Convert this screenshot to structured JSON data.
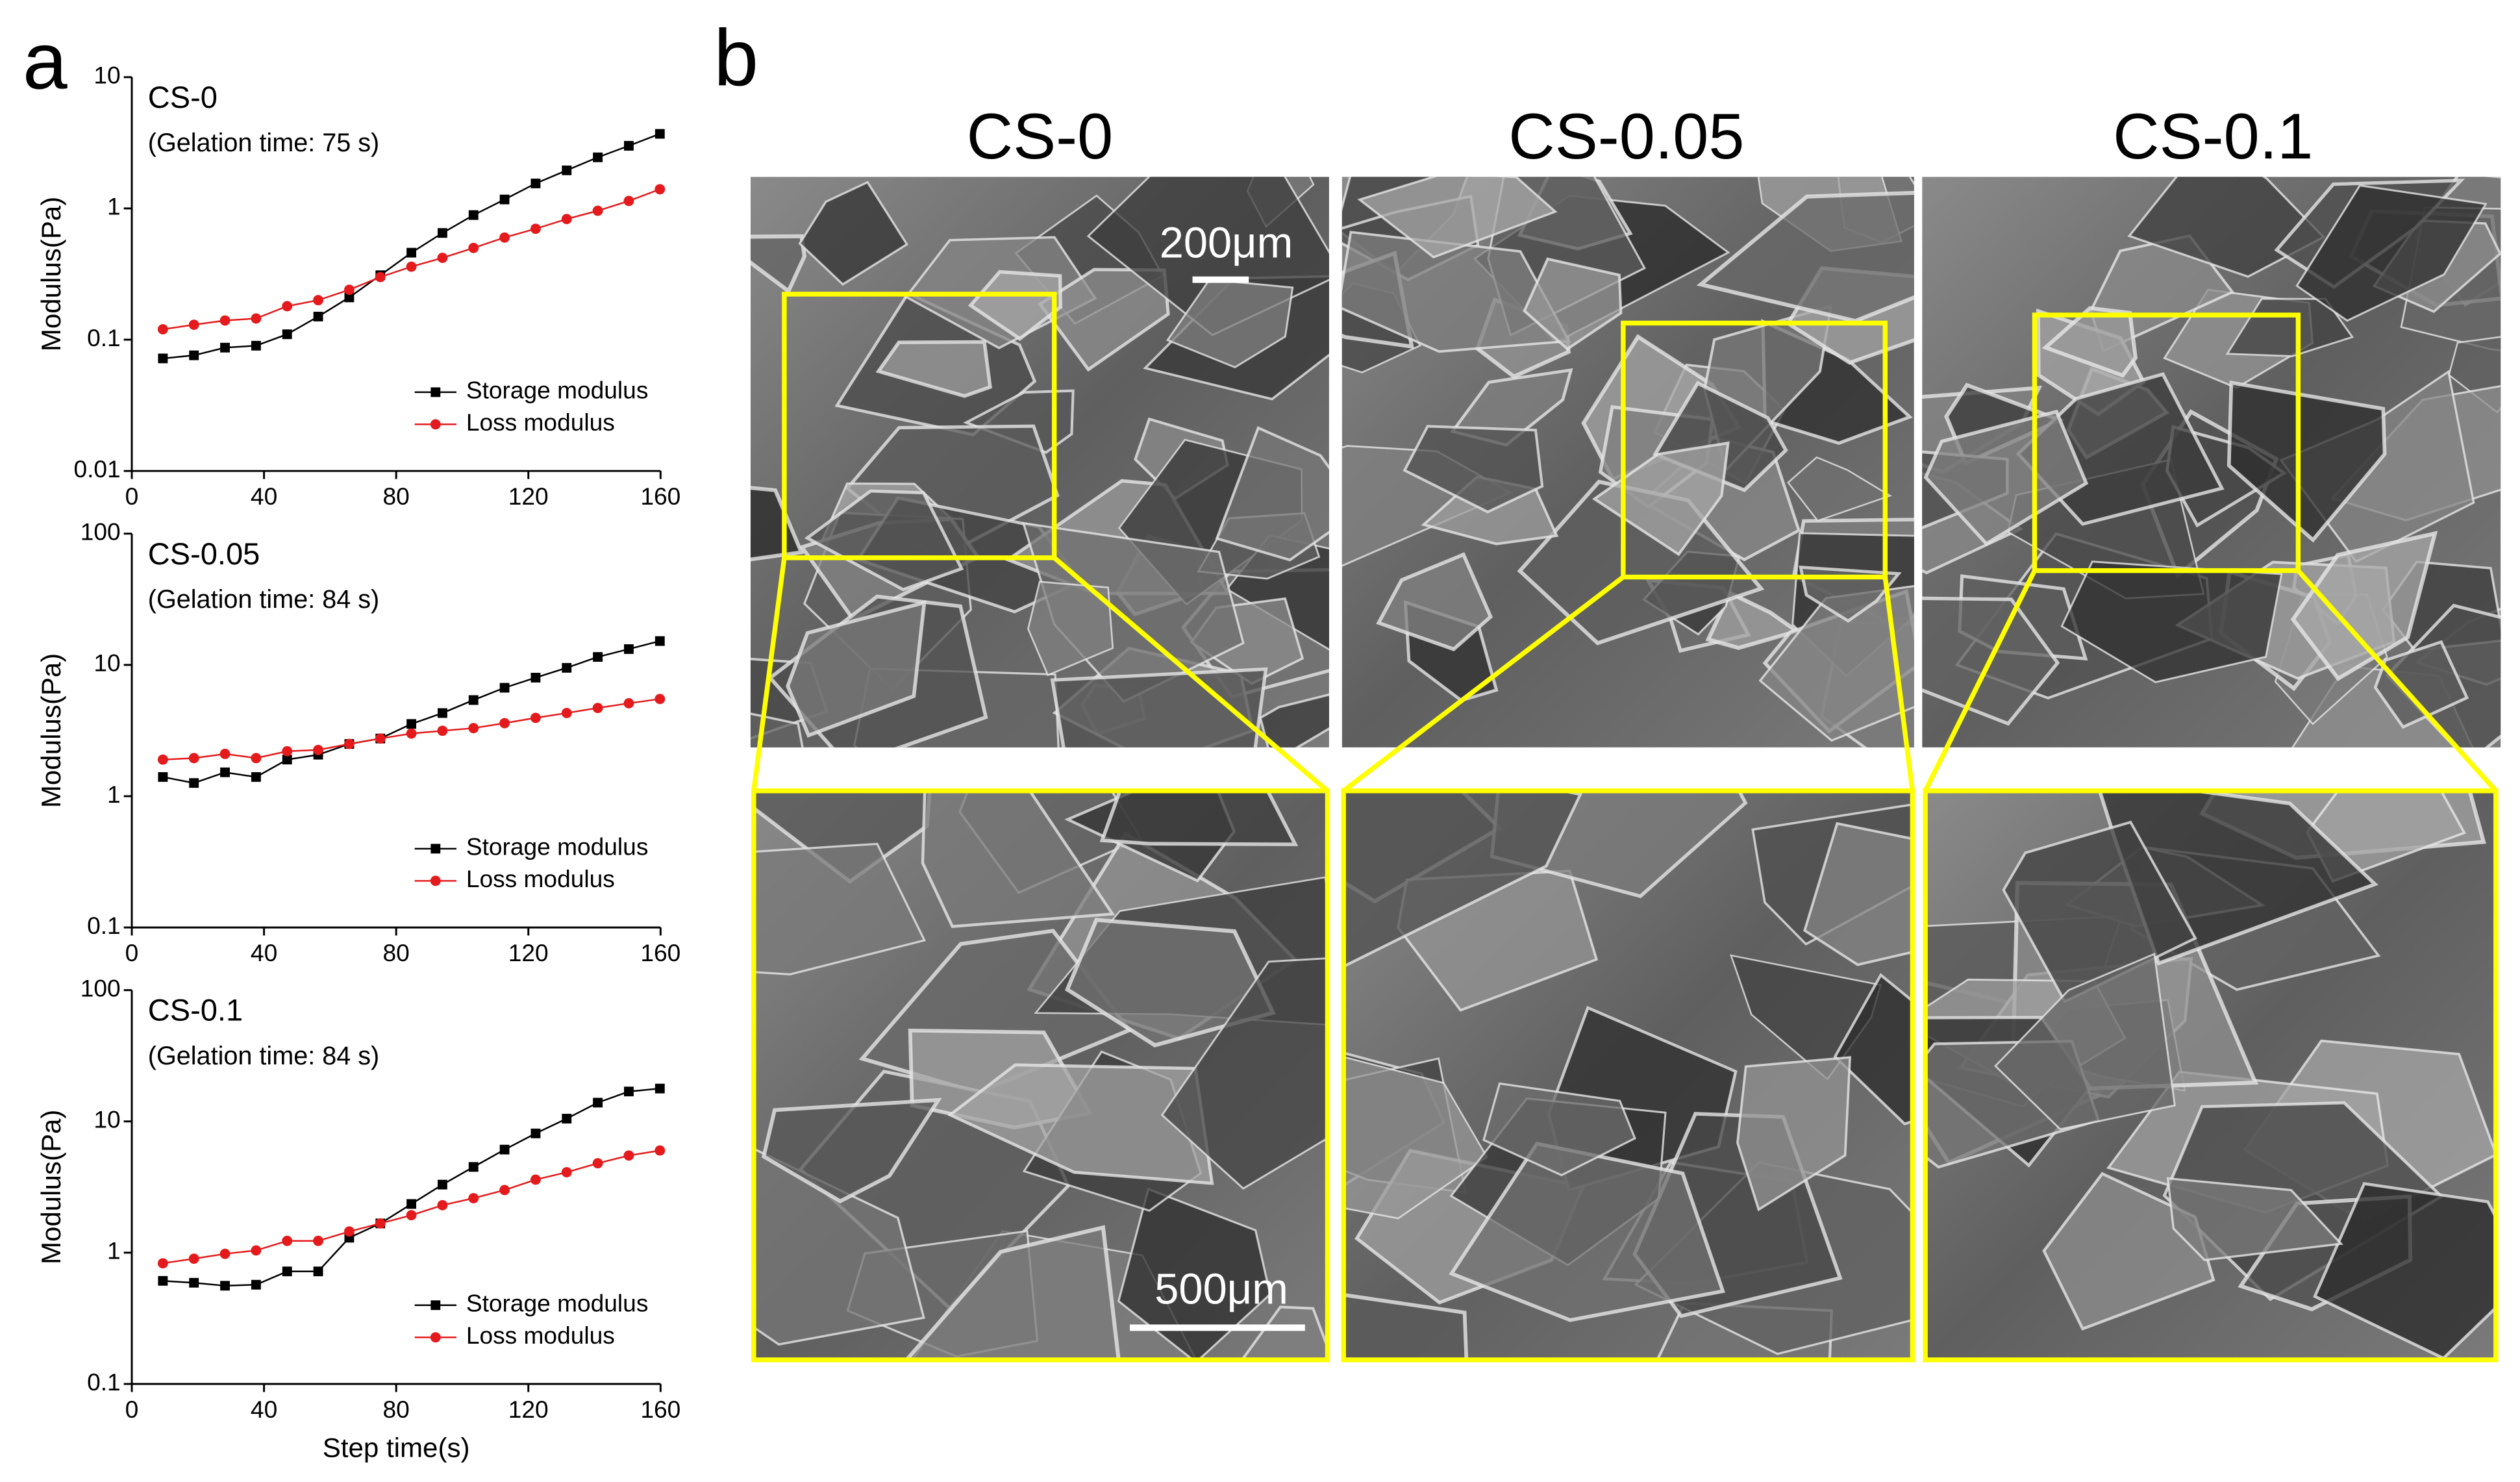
{
  "panels": [
    "a",
    "b"
  ],
  "sem": {
    "titles": [
      "CS-0",
      "CS-0.05",
      "CS-0.1"
    ],
    "scale_bars": [
      "200μm",
      "500μm"
    ]
  },
  "chart_data": [
    {
      "type": "line",
      "title": "CS-0",
      "subtitle": "(Gelation time: 75 s)",
      "y_label": "Modulus(Pa)",
      "x": [
        9.4,
        18.8,
        28.2,
        37.6,
        47,
        56.4,
        65.8,
        75.2,
        84.6,
        94,
        103.4,
        112.8,
        122.2,
        131.6,
        141,
        150.4,
        159.8
      ],
      "series": [
        {
          "name": "Storage modulus",
          "color": "#000000",
          "marker": "square",
          "values": [
            0.072,
            0.076,
            0.087,
            0.09,
            0.11,
            0.15,
            0.21,
            0.31,
            0.46,
            0.65,
            0.89,
            1.17,
            1.55,
            1.95,
            2.45,
            3.0,
            3.7
          ]
        },
        {
          "name": "Loss modulus",
          "color": "#e41a1c",
          "marker": "circle",
          "values": [
            0.12,
            0.13,
            0.14,
            0.145,
            0.18,
            0.2,
            0.24,
            0.3,
            0.36,
            0.42,
            0.5,
            0.6,
            0.7,
            0.83,
            0.96,
            1.14,
            1.4
          ]
        }
      ],
      "xlim": [
        0,
        160
      ],
      "xticks": [
        0,
        40,
        80,
        120,
        160
      ],
      "ylim": [
        0.01,
        10
      ],
      "yticks": [
        0.01,
        0.1,
        1,
        10
      ],
      "log_y": true,
      "legend": "lower right"
    },
    {
      "type": "line",
      "title": "CS-0.05",
      "subtitle": "(Gelation time: 84 s)",
      "y_label": "Modulus(Pa)",
      "x": [
        9.4,
        18.8,
        28.2,
        37.6,
        47,
        56.4,
        65.8,
        75.2,
        84.6,
        94,
        103.4,
        112.8,
        122.2,
        131.6,
        141,
        150.4,
        159.8
      ],
      "series": [
        {
          "name": "Storage modulus",
          "color": "#000000",
          "marker": "square",
          "values": [
            1.4,
            1.26,
            1.52,
            1.4,
            1.9,
            2.07,
            2.5,
            2.75,
            3.55,
            4.3,
            5.4,
            6.7,
            8.0,
            9.5,
            11.5,
            13.2,
            15.2
          ]
        },
        {
          "name": "Loss modulus",
          "color": "#e41a1c",
          "marker": "circle",
          "values": [
            1.9,
            1.95,
            2.1,
            1.95,
            2.2,
            2.25,
            2.5,
            2.75,
            3.0,
            3.15,
            3.3,
            3.6,
            3.95,
            4.3,
            4.7,
            5.1,
            5.5
          ]
        }
      ],
      "xlim": [
        0,
        160
      ],
      "xticks": [
        0,
        40,
        80,
        120,
        160
      ],
      "ylim": [
        0.1,
        100
      ],
      "yticks": [
        0.1,
        1,
        10,
        100
      ],
      "log_y": true,
      "legend": "lower right"
    },
    {
      "type": "line",
      "title": "CS-0.1",
      "subtitle": "(Gelation time: 84 s)",
      "y_label": "Modulus(Pa)",
      "x_label": "Step time(s)",
      "x": [
        9.4,
        18.8,
        28.2,
        37.6,
        47,
        56.4,
        65.8,
        75.2,
        84.6,
        94,
        103.4,
        112.8,
        122.2,
        131.6,
        141,
        150.4,
        159.8
      ],
      "series": [
        {
          "name": "Storage modulus",
          "color": "#000000",
          "marker": "square",
          "values": [
            0.61,
            0.59,
            0.56,
            0.57,
            0.72,
            0.72,
            1.3,
            1.67,
            2.35,
            3.3,
            4.5,
            6.1,
            8.1,
            10.5,
            13.9,
            16.9,
            17.8
          ]
        },
        {
          "name": "Loss modulus",
          "color": "#e41a1c",
          "marker": "circle",
          "values": [
            0.83,
            0.9,
            0.98,
            1.04,
            1.23,
            1.23,
            1.45,
            1.67,
            1.93,
            2.3,
            2.6,
            3.0,
            3.6,
            4.1,
            4.8,
            5.5,
            6.0
          ]
        }
      ],
      "xlim": [
        0,
        160
      ],
      "xticks": [
        0,
        40,
        80,
        120,
        160
      ],
      "ylim": [
        0.1,
        100
      ],
      "yticks": [
        0.1,
        1,
        10,
        100
      ],
      "log_y": true,
      "legend": "lower right"
    }
  ]
}
